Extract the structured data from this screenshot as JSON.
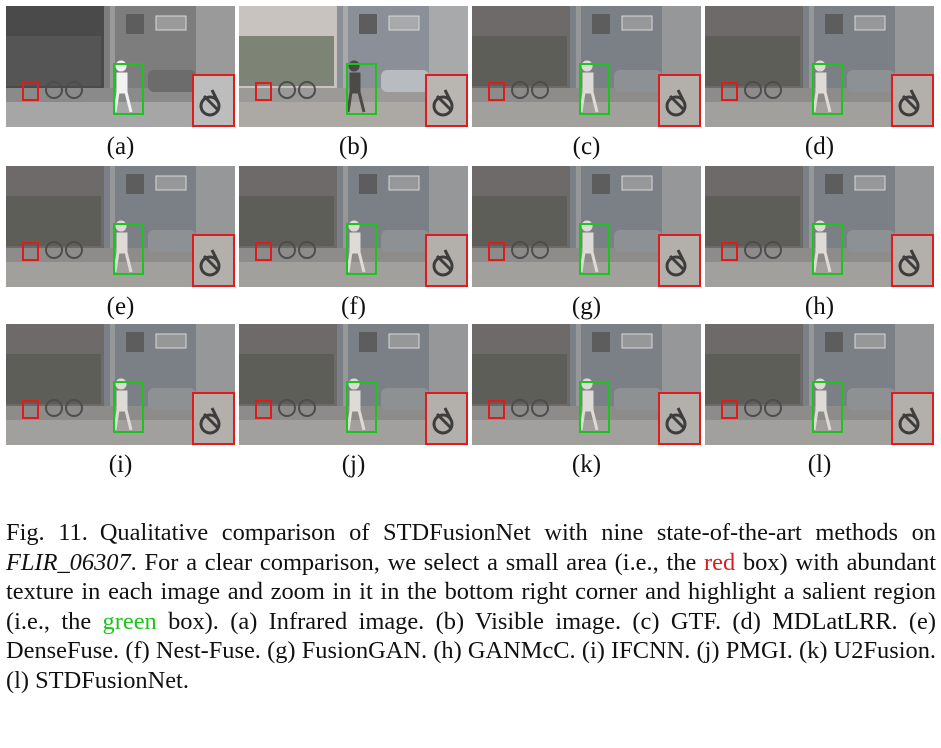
{
  "panels": [
    {
      "label": "(a)",
      "theme": "ir"
    },
    {
      "label": "(b)",
      "theme": "vis"
    },
    {
      "label": "(c)",
      "theme": "fused"
    },
    {
      "label": "(d)",
      "theme": "fused"
    },
    {
      "label": "(e)",
      "theme": "fused"
    },
    {
      "label": "(f)",
      "theme": "fused"
    },
    {
      "label": "(g)",
      "theme": "fused"
    },
    {
      "label": "(h)",
      "theme": "fused"
    },
    {
      "label": "(i)",
      "theme": "fused"
    },
    {
      "label": "(j)",
      "theme": "fused"
    },
    {
      "label": "(k)",
      "theme": "fused"
    },
    {
      "label": "(l)",
      "theme": "fused"
    }
  ],
  "caption": {
    "fig_number": "Fig. 11.",
    "part1": "Qualitative comparison of STDFusionNet with nine state-of-the-art methods on ",
    "dataset_name": "FLIR_06307",
    "part2": ". For a clear comparison, we select a small area (i.e., the ",
    "red_word": "red",
    "part3": " box) with abundant texture in each image and zoom in it in the bottom right corner and highlight a salient region (i.e., the ",
    "green_word": "green",
    "part4": " box). (a) Infrared image. (b) Visible image. (c) GTF. (d) MDLatLRR. (e) DenseFuse. (f) Nest-Fuse. (g) FusionGAN. (h) GANMcC. (i) IFCNN. (j) PMGI. (k) U2Fusion. (l) STDFusionNet."
  },
  "colors": {
    "red_box": "#e01b1b",
    "green_box": "#1ec41e"
  }
}
